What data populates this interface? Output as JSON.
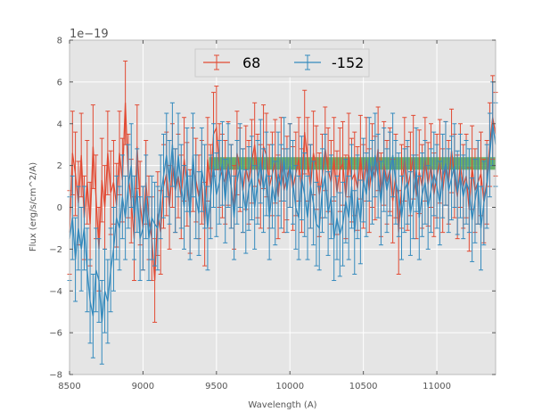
{
  "chart_data": {
    "type": "line",
    "title": "",
    "xlabel": "Wavelength (A)",
    "ylabel": "Flux (erg/s/cm^2/A)",
    "y_offset_label": "1e−19",
    "y_scale": 1e-19,
    "xlim": [
      8500,
      11400
    ],
    "ylim": [
      -8,
      8
    ],
    "xticks": [
      8500,
      9000,
      9500,
      10000,
      10500,
      11000
    ],
    "xtick_labels": [
      "8500",
      "9000",
      "9500",
      "10000",
      "10500",
      "11000"
    ],
    "yticks": [
      -8,
      -6,
      -4,
      -2,
      0,
      2,
      4,
      6,
      8
    ],
    "ytick_labels": [
      "−8",
      "−6",
      "−4",
      "−2",
      "0",
      "2",
      "4",
      "6",
      "8"
    ],
    "grid": true,
    "legend_position": "top-center",
    "background": "#e5e5e5",
    "band": {
      "x": [
        9450,
        11400
      ],
      "y": [
        1.8,
        2.4
      ],
      "color": "#3f9e3f"
    },
    "series": [
      {
        "name": "68",
        "color": "#e24a33",
        "x": [
          8500,
          8520,
          8540,
          8560,
          8580,
          8600,
          8620,
          8640,
          8660,
          8680,
          8700,
          8720,
          8740,
          8760,
          8780,
          8800,
          8820,
          8840,
          8860,
          8880,
          8900,
          8920,
          8940,
          8960,
          8980,
          9000,
          9020,
          9040,
          9060,
          9080,
          9100,
          9120,
          9140,
          9160,
          9180,
          9200,
          9220,
          9240,
          9260,
          9280,
          9300,
          9320,
          9340,
          9360,
          9380,
          9400,
          9420,
          9440,
          9460,
          9480,
          9500,
          9520,
          9540,
          9560,
          9580,
          9600,
          9620,
          9640,
          9660,
          9680,
          9700,
          9720,
          9740,
          9760,
          9780,
          9800,
          9820,
          9840,
          9860,
          9880,
          9900,
          9920,
          9940,
          9960,
          9980,
          10000,
          10020,
          10040,
          10060,
          10080,
          10100,
          10120,
          10140,
          10160,
          10180,
          10200,
          10220,
          10240,
          10260,
          10280,
          10300,
          10320,
          10340,
          10360,
          10380,
          10400,
          10420,
          10440,
          10460,
          10480,
          10500,
          10520,
          10540,
          10560,
          10580,
          10600,
          10620,
          10640,
          10660,
          10680,
          10700,
          10720,
          10740,
          10760,
          10780,
          10800,
          10820,
          10840,
          10860,
          10880,
          10900,
          10920,
          10940,
          10960,
          10980,
          11000,
          11020,
          11040,
          11060,
          11080,
          11100,
          11120,
          11140,
          11160,
          11180,
          11200,
          11220,
          11240,
          11260,
          11280,
          11300,
          11320,
          11340,
          11360,
          11380,
          11400
        ],
        "y": [
          -1.2,
          2.6,
          1.6,
          0.2,
          2.5,
          -0.5,
          1.2,
          -0.8,
          2.9,
          0.5,
          -2.0,
          1.3,
          0.0,
          2.6,
          0.7,
          1.2,
          0.1,
          2.6,
          1.3,
          5.0,
          1.5,
          0.3,
          -1.5,
          2.9,
          0.2,
          -1.0,
          1.2,
          -0.5,
          -1.5,
          -3.5,
          -0.3,
          -1.2,
          1.0,
          1.6,
          0.0,
          2.0,
          0.8,
          1.5,
          0.5,
          2.3,
          1.1,
          -0.2,
          1.8,
          1.3,
          0.5,
          1.2,
          -0.8,
          2.3,
          1.0,
          3.5,
          3.8,
          2.0,
          1.5,
          1.2,
          2.1,
          1.0,
          0.0,
          2.6,
          1.8,
          0.8,
          1.9,
          1.2,
          2.2,
          3.0,
          1.5,
          1.0,
          2.9,
          2.5,
          1.0,
          1.6,
          2.2,
          0.5,
          2.3,
          0.8,
          1.4,
          2.0,
          0.9,
          1.6,
          2.3,
          0.8,
          3.6,
          2.3,
          1.0,
          2.6,
          1.9,
          0.6,
          1.5,
          2.8,
          1.8,
          1.2,
          2.3,
          0.7,
          1.8,
          2.1,
          0.5,
          2.5,
          1.3,
          1.6,
          0.9,
          2.4,
          1.0,
          2.3,
          0.8,
          2.0,
          1.4,
          2.8,
          0.6,
          2.1,
          1.2,
          1.8,
          0.3,
          1.5,
          -1.2,
          1.0,
          2.3,
          0.9,
          1.6,
          2.4,
          0.5,
          1.7,
          1.0,
          2.3,
          1.1,
          2.0,
          0.6,
          1.5,
          2.2,
          0.8,
          2.1,
          1.2,
          2.7,
          1.5,
          0.5,
          2.0,
          1.0,
          1.5,
          -0.1,
          1.9,
          0.8,
          1.2,
          1.6,
          0.3,
          1.2,
          3.0,
          4.3,
          3.5
        ],
        "yerr": 2.0
      },
      {
        "name": "-152",
        "color": "#348abd",
        "x": [
          8500,
          8520,
          8540,
          8560,
          8580,
          8600,
          8620,
          8640,
          8660,
          8680,
          8700,
          8720,
          8740,
          8760,
          8780,
          8800,
          8820,
          8840,
          8860,
          8880,
          8900,
          8920,
          8940,
          8960,
          8980,
          9000,
          9020,
          9040,
          9060,
          9080,
          9100,
          9120,
          9140,
          9160,
          9180,
          9200,
          9220,
          9240,
          9260,
          9280,
          9300,
          9320,
          9340,
          9360,
          9380,
          9400,
          9420,
          9440,
          9460,
          9480,
          9500,
          9520,
          9540,
          9560,
          9580,
          9600,
          9620,
          9640,
          9660,
          9680,
          9700,
          9720,
          9740,
          9760,
          9780,
          9800,
          9820,
          9840,
          9860,
          9880,
          9900,
          9920,
          9940,
          9960,
          9980,
          10000,
          10020,
          10040,
          10060,
          10080,
          10100,
          10120,
          10140,
          10160,
          10180,
          10200,
          10220,
          10240,
          10260,
          10280,
          10300,
          10320,
          10340,
          10360,
          10380,
          10400,
          10420,
          10440,
          10460,
          10480,
          10500,
          10520,
          10540,
          10560,
          10580,
          10600,
          10620,
          10640,
          10660,
          10680,
          10700,
          10720,
          10740,
          10760,
          10780,
          10800,
          10820,
          10840,
          10860,
          10880,
          10900,
          10920,
          10940,
          10960,
          10980,
          11000,
          11020,
          11040,
          11060,
          11080,
          11100,
          11120,
          11140,
          11160,
          11180,
          11200,
          11220,
          11240,
          11260,
          11280,
          11300,
          11320,
          11340,
          11360,
          11380,
          11400
        ],
        "y": [
          -1.5,
          -0.5,
          -2.5,
          -1.0,
          -2.0,
          -1.0,
          -3.0,
          -4.5,
          -5.2,
          -3.0,
          -3.5,
          -5.5,
          -4.0,
          -4.5,
          -3.0,
          -2.0,
          -0.5,
          -1.0,
          0.5,
          -0.5,
          1.0,
          2.0,
          -0.5,
          0.8,
          -1.5,
          -1.0,
          0.5,
          -1.5,
          -0.5,
          -0.8,
          -1.0,
          0.5,
          1.5,
          2.5,
          1.2,
          3.0,
          0.8,
          2.5,
          1.0,
          0.0,
          1.8,
          -0.5,
          2.5,
          0.5,
          -0.3,
          1.8,
          1.0,
          -1.0,
          0.5,
          2.0,
          0.6,
          1.2,
          2.1,
          0.3,
          2.0,
          1.0,
          -0.5,
          1.2,
          2.0,
          0.8,
          -0.2,
          0.9,
          1.4,
          0.0,
          1.2,
          2.2,
          0.8,
          1.6,
          -0.5,
          1.0,
          0.2,
          1.6,
          1.0,
          2.3,
          0.8,
          2.0,
          1.2,
          0.0,
          -0.5,
          1.4,
          0.6,
          -0.5,
          1.0,
          0.2,
          -0.8,
          -1.0,
          0.8,
          1.5,
          -0.3,
          0.5,
          -1.5,
          -0.5,
          -1.3,
          -0.8,
          0.3,
          -0.5,
          1.0,
          -1.2,
          0.5,
          -0.7,
          1.3,
          0.6,
          2.3,
          1.2,
          2.5,
          1.5,
          0.2,
          1.8,
          0.8,
          1.6,
          2.5,
          1.2,
          0.6,
          -0.5,
          0.8,
          1.2,
          -0.3,
          0.5,
          1.8,
          -0.5,
          0.6,
          1.2,
          0.0,
          0.8,
          1.6,
          1.0,
          0.2,
          1.5,
          2.1,
          0.8,
          1.4,
          2.0,
          0.7,
          1.5,
          0.5,
          1.2,
          0.8,
          -0.6,
          0.3,
          1.2,
          -1.0,
          0.2,
          1.0,
          2.5,
          4.0,
          3.0
        ],
        "yerr": 2.0
      }
    ]
  }
}
